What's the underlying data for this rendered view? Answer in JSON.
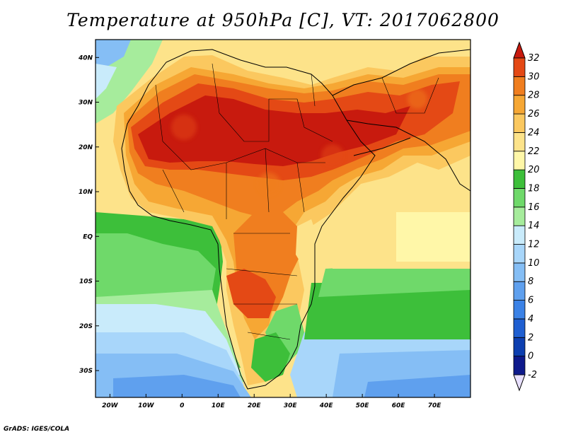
{
  "title": "Temperature at 950hPa [C], VT: 2017062800",
  "credit": "GrADS: IGES/COLA",
  "map": {
    "lon_range": [
      -24,
      80
    ],
    "lat_range": [
      -36,
      44
    ],
    "lon_ticks": [
      {
        "value": -20,
        "label": "20W"
      },
      {
        "value": -10,
        "label": "10W"
      },
      {
        "value": 0,
        "label": "0"
      },
      {
        "value": 10,
        "label": "10E"
      },
      {
        "value": 20,
        "label": "20E"
      },
      {
        "value": 30,
        "label": "30E"
      },
      {
        "value": 40,
        "label": "40E"
      },
      {
        "value": 50,
        "label": "50E"
      },
      {
        "value": 60,
        "label": "60E"
      },
      {
        "value": 70,
        "label": "70E"
      }
    ],
    "lat_ticks": [
      {
        "value": 40,
        "label": "40N"
      },
      {
        "value": 30,
        "label": "30N"
      },
      {
        "value": 20,
        "label": "20N"
      },
      {
        "value": 10,
        "label": "10N"
      },
      {
        "value": 0,
        "label": "EQ"
      },
      {
        "value": -10,
        "label": "10S"
      },
      {
        "value": -20,
        "label": "20S"
      },
      {
        "value": -30,
        "label": "30S"
      }
    ]
  },
  "colorbar": {
    "levels": [
      "-2",
      "0",
      "2",
      "4",
      "6",
      "8",
      "10",
      "12",
      "14",
      "16",
      "18",
      "20",
      "22",
      "24",
      "26",
      "28",
      "30",
      "32"
    ],
    "colors": [
      "#0e1a8c",
      "#0d3fb0",
      "#1f5fd1",
      "#3b82e6",
      "#5fa0ee",
      "#85bef5",
      "#a8d6fa",
      "#c9ebfb",
      "#a6ec9c",
      "#6fd96a",
      "#3dbf3a",
      "#fff7a8",
      "#fde38a",
      "#fbc85f",
      "#f6a734",
      "#f07e1f",
      "#e44915",
      "#c81a0e"
    ]
  }
}
